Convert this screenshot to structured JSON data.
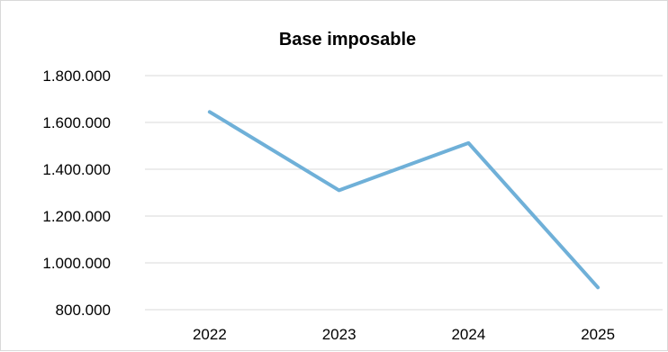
{
  "chart_data": {
    "type": "line",
    "title": "Base imposable",
    "xlabel": "",
    "ylabel": "",
    "categories": [
      "2022",
      "2023",
      "2024",
      "2025"
    ],
    "series": [
      {
        "values": [
          1645000,
          1310000,
          1512000,
          895000
        ],
        "color": "#6fb0d8"
      }
    ],
    "ylim": [
      800000,
      1800000
    ],
    "y_ticks": [
      800000,
      1000000,
      1200000,
      1400000,
      1600000,
      1800000
    ],
    "y_tick_labels": [
      "800.000",
      "1.000.000",
      "1.200.000",
      "1.400.000",
      "1.600.000",
      "1.800.000"
    ],
    "grid": true,
    "legend": "none",
    "gridline_color": "#d9d9d9"
  }
}
